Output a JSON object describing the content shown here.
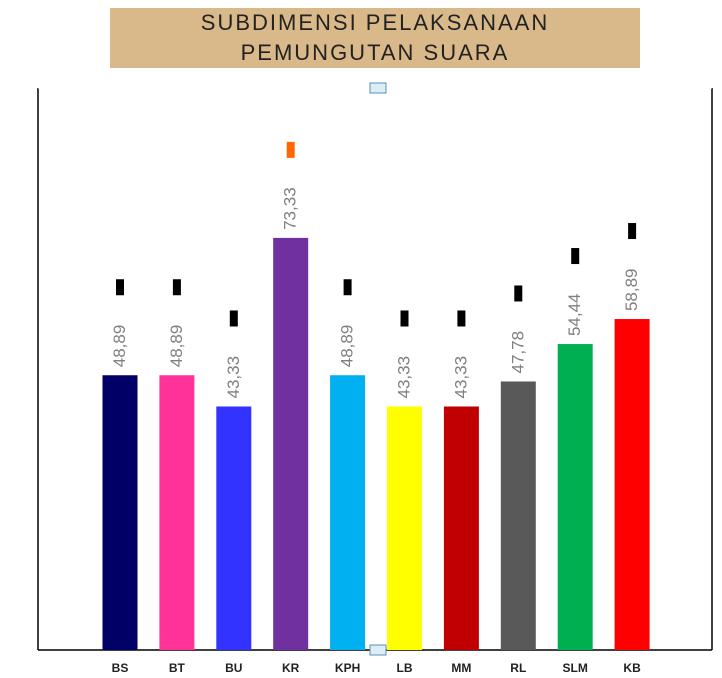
{
  "chart_data": {
    "type": "bar",
    "title": "SUBDIMENSI PELAKSANAAN PEMUNGUTAN SUARA",
    "categories": [
      "BS",
      "BT",
      "BU",
      "KR",
      "KPH",
      "LB",
      "MM",
      "RL",
      "SLM",
      "KB"
    ],
    "values": [
      48.89,
      48.89,
      43.33,
      73.33,
      48.89,
      43.33,
      43.33,
      47.78,
      54.44,
      58.89
    ],
    "value_labels": [
      "48,89",
      "48,89",
      "43,33",
      "73,33",
      "48,89",
      "43,33",
      "43,33",
      "47,78",
      "54,44",
      "58,89"
    ],
    "colors": [
      "#000066",
      "#ff3399",
      "#3333ff",
      "#7030a0",
      "#00b0f0",
      "#ffff00",
      "#c00000",
      "#595959",
      "#00b050",
      "#ff0000"
    ],
    "ylim": [
      0,
      100
    ]
  }
}
